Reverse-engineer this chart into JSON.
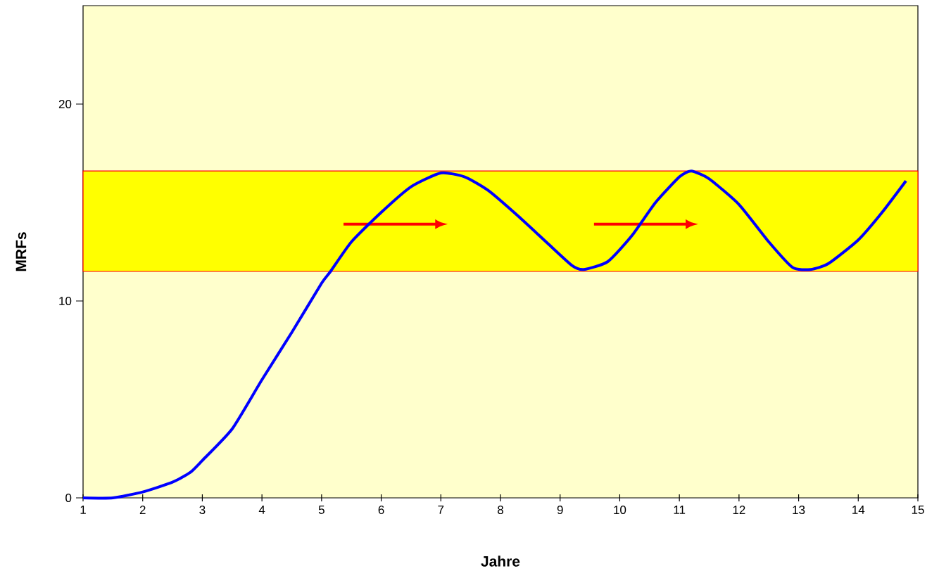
{
  "chart_data": {
    "type": "line",
    "xlabel": "Jahre",
    "ylabel": "MRFs",
    "x": [
      1,
      1.5,
      2,
      2.5,
      2.8,
      3,
      3.5,
      4,
      4.5,
      5,
      5.15,
      5.5,
      6,
      6.5,
      7,
      7.4,
      7.8,
      8.3,
      8.8,
      9.2,
      9.4,
      9.8,
      10.2,
      10.6,
      11,
      11.2,
      11.5,
      12,
      12.5,
      12.9,
      13.2,
      13.5,
      14,
      14.4,
      14.8
    ],
    "series": [
      {
        "color": "#0000ff",
        "values": [
          0,
          0,
          0.3,
          0.8,
          1.3,
          1.9,
          3.5,
          6.0,
          8.4,
          10.9,
          11.5,
          13.0,
          14.5,
          15.8,
          16.5,
          16.3,
          15.6,
          14.3,
          12.9,
          11.8,
          11.6,
          12.0,
          13.3,
          15.0,
          16.3,
          16.6,
          16.2,
          14.9,
          13.0,
          11.7,
          11.6,
          11.9,
          13.1,
          14.5,
          16.1
        ]
      }
    ],
    "xlim": [
      1,
      15
    ],
    "ylim": [
      0,
      25
    ],
    "xticks": [
      1,
      2,
      3,
      4,
      5,
      6,
      7,
      8,
      9,
      10,
      11,
      12,
      13,
      14,
      15
    ],
    "yticks": [
      0,
      10,
      20
    ],
    "bands": [
      {
        "axis": "y",
        "from": 11.5,
        "to": 16.6,
        "color": "#ffff00"
      }
    ],
    "grid": false,
    "marker": "none",
    "line_style": "solid"
  }
}
